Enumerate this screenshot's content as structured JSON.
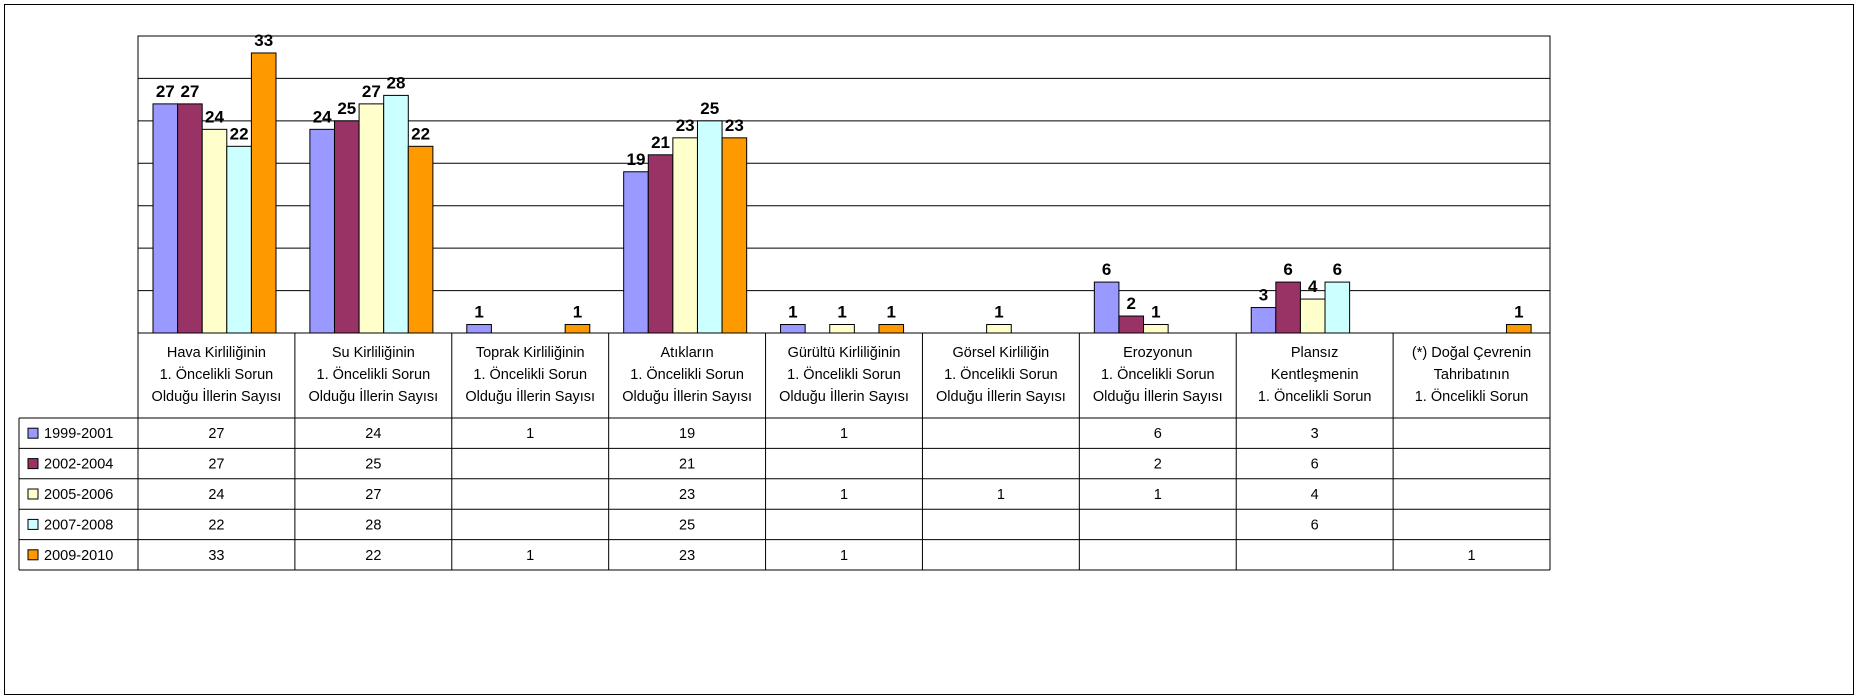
{
  "chart_data": {
    "type": "bar",
    "categories": [
      [
        "Hava Kirliliğinin",
        "1. Öncelikli Sorun",
        "Olduğu İllerin Sayısı"
      ],
      [
        "Su Kirliliğinin",
        "1. Öncelikli Sorun",
        "Olduğu İllerin Sayısı"
      ],
      [
        "Toprak Kirliliğinin",
        "1. Öncelikli Sorun",
        "Olduğu İllerin Sayısı"
      ],
      [
        "Atıkların",
        "1. Öncelikli Sorun",
        "Olduğu İllerin Sayısı"
      ],
      [
        "Gürültü Kirliliğinin",
        "1. Öncelikli Sorun",
        "Olduğu İllerin Sayısı"
      ],
      [
        "Görsel Kirliliğin",
        "1. Öncelikli Sorun",
        "Olduğu İllerin Sayısı"
      ],
      [
        "Erozyonun",
        "1. Öncelikli Sorun",
        "Olduğu İllerin Sayısı"
      ],
      [
        "Plansız",
        "Kentleşmenin",
        "1. Öncelikli Sorun"
      ],
      [
        "(*) Doğal Çevrenin",
        "Tahribatının",
        "1. Öncelikli Sorun"
      ]
    ],
    "series": [
      {
        "name": "1999-2001",
        "color": "#9999ff",
        "values": [
          27,
          24,
          1,
          19,
          1,
          null,
          6,
          3,
          null
        ]
      },
      {
        "name": "2002-2004",
        "color": "#993366",
        "values": [
          27,
          25,
          null,
          21,
          null,
          null,
          2,
          6,
          null
        ]
      },
      {
        "name": "2005-2006",
        "color": "#ffffcc",
        "values": [
          24,
          27,
          null,
          23,
          1,
          1,
          1,
          4,
          null
        ]
      },
      {
        "name": "2007-2008",
        "color": "#ccffff",
        "values": [
          22,
          28,
          null,
          25,
          null,
          null,
          null,
          6,
          null
        ]
      },
      {
        "name": "2009-2010",
        "color": "#ff9900",
        "values": [
          33,
          22,
          1,
          23,
          1,
          null,
          null,
          null,
          1
        ]
      }
    ],
    "ylim": [
      0,
      35
    ],
    "grid": true,
    "legend": "data-table"
  }
}
